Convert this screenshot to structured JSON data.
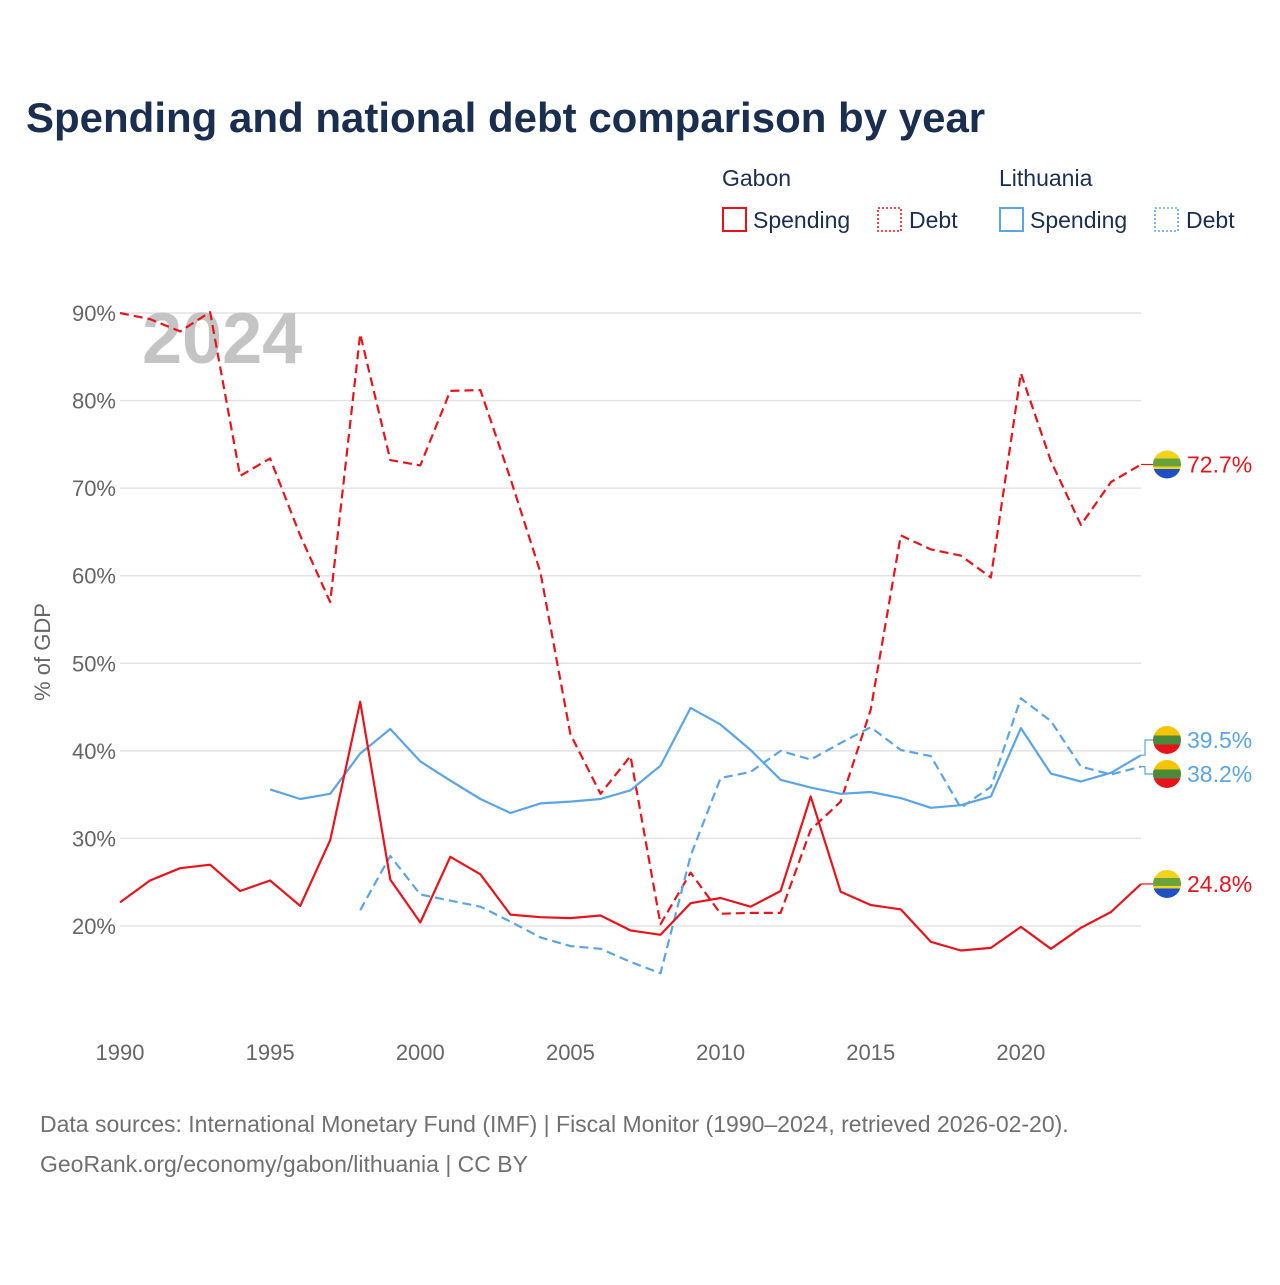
{
  "chart_data": {
    "type": "line",
    "title": "Spending and national debt comparison by year",
    "year_watermark": "2024",
    "ylabel": "% of GDP",
    "xlabel": "",
    "xlim": [
      1990,
      2024
    ],
    "ylim": [
      10,
      92
    ],
    "x_ticks": [
      1990,
      1995,
      2000,
      2005,
      2010,
      2015,
      2020
    ],
    "y_ticks": [
      20,
      30,
      40,
      50,
      60,
      70,
      80,
      90
    ],
    "y_tick_labels": [
      "20%",
      "30%",
      "40%",
      "50%",
      "60%",
      "70%",
      "80%",
      "90%"
    ],
    "legend": {
      "placement": "top-right",
      "groups": [
        {
          "country": "Gabon",
          "color": "#e8141c",
          "spending_label": "Spending",
          "debt_label": "Debt"
        },
        {
          "country": "Lithuania",
          "color": "#5ba5e6",
          "spending_label": "Spending",
          "debt_label": "Debt"
        }
      ]
    },
    "series": [
      {
        "name": "Gabon Spending",
        "country": "Gabon",
        "metric": "Spending",
        "color": "#e8141c",
        "dashed": false,
        "x": [
          1990,
          1991,
          1992,
          1993,
          1994,
          1995,
          1996,
          1997,
          1998,
          1999,
          2000,
          2001,
          2002,
          2003,
          2004,
          2005,
          2006,
          2007,
          2008,
          2009,
          2010,
          2011,
          2012,
          2013,
          2014,
          2015,
          2016,
          2017,
          2018,
          2019,
          2020,
          2021,
          2022,
          2023,
          2024
        ],
        "values": [
          22.7,
          25.2,
          26.6,
          27.0,
          24.0,
          25.2,
          22.3,
          29.8,
          45.6,
          25.3,
          20.4,
          27.9,
          25.9,
          21.3,
          21.0,
          20.9,
          21.2,
          19.5,
          19.0,
          22.6,
          23.2,
          22.2,
          24.0,
          34.8,
          23.9,
          22.4,
          21.9,
          18.2,
          17.2,
          17.5,
          19.9,
          17.4,
          19.8,
          21.6,
          24.8
        ],
        "end_label": "24.8%",
        "flag": "gabon"
      },
      {
        "name": "Gabon Debt",
        "country": "Gabon",
        "metric": "Debt",
        "color": "#e8141c",
        "dashed": true,
        "x": [
          1990,
          1991,
          1992,
          1993,
          1994,
          1995,
          1996,
          1997,
          1998,
          1999,
          2000,
          2001,
          2002,
          2003,
          2004,
          2005,
          2006,
          2007,
          2008,
          2009,
          2010,
          2011,
          2012,
          2013,
          2014,
          2015,
          2016,
          2017,
          2018,
          2019,
          2020,
          2021,
          2022,
          2023,
          2024
        ],
        "values": [
          90.0,
          89.3,
          87.9,
          90.1,
          71.4,
          73.4,
          64.6,
          57.0,
          87.6,
          73.2,
          72.6,
          81.1,
          81.2,
          71.1,
          60.4,
          41.9,
          35.1,
          39.4,
          20.2,
          26.1,
          21.4,
          21.5,
          21.5,
          31.0,
          34.2,
          44.7,
          64.6,
          63.0,
          62.3,
          59.8,
          83.1,
          73.1,
          65.8,
          70.7,
          72.7
        ],
        "end_label": "72.7%",
        "flag": "gabon"
      },
      {
        "name": "Lithuania Spending",
        "country": "Lithuania",
        "metric": "Spending",
        "color": "#5ba5e6",
        "dashed": false,
        "x": [
          1995,
          1996,
          1997,
          1998,
          1999,
          2000,
          2001,
          2002,
          2003,
          2004,
          2005,
          2006,
          2007,
          2008,
          2009,
          2010,
          2011,
          2012,
          2013,
          2014,
          2015,
          2016,
          2017,
          2018,
          2019,
          2020,
          2021,
          2022,
          2023,
          2024
        ],
        "values": [
          35.6,
          34.5,
          35.1,
          39.7,
          42.5,
          38.8,
          36.6,
          34.5,
          32.9,
          34.0,
          34.2,
          34.5,
          35.5,
          38.3,
          44.9,
          43.0,
          40.1,
          36.7,
          35.8,
          35.1,
          35.3,
          34.6,
          33.5,
          33.8,
          34.8,
          42.6,
          37.4,
          36.5,
          37.5,
          39.5
        ],
        "end_label": "39.5%",
        "flag": "lithuania"
      },
      {
        "name": "Lithuania Debt",
        "country": "Lithuania",
        "metric": "Debt",
        "color": "#5ba5e6",
        "dashed": true,
        "x": [
          1998,
          1999,
          2000,
          2001,
          2002,
          2003,
          2004,
          2005,
          2006,
          2007,
          2008,
          2009,
          2010,
          2011,
          2012,
          2013,
          2014,
          2015,
          2016,
          2017,
          2018,
          2019,
          2020,
          2021,
          2022,
          2023,
          2024
        ],
        "values": [
          21.8,
          28.0,
          23.6,
          22.9,
          22.2,
          20.5,
          18.7,
          17.7,
          17.4,
          15.9,
          14.6,
          28.0,
          36.9,
          37.6,
          40.0,
          39.0,
          40.9,
          42.7,
          40.1,
          39.4,
          33.5,
          35.9,
          46.0,
          43.4,
          38.2,
          37.3,
          38.2
        ],
        "end_label": "38.2%",
        "flag": "lithuania"
      }
    ],
    "source_lines": [
      "Data sources: International Monetary Fund (IMF) | Fiscal Monitor (1990–2024, retrieved 2026-02-20).",
      "GeoRank.org/economy/gabon/lithuania | CC BY"
    ]
  }
}
